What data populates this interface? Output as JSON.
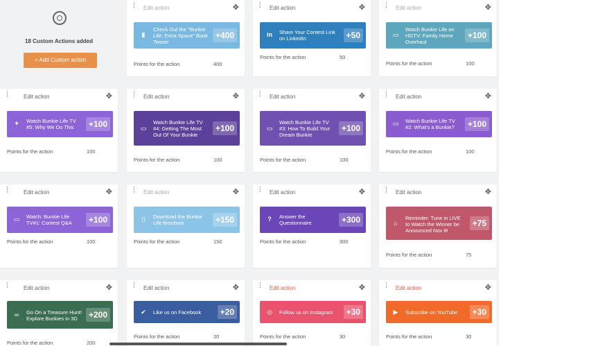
{
  "summary": {
    "count_label": "18 Custom Actions added",
    "add_button": "Add Custom action"
  },
  "edit_label": "Edit action",
  "points_label": "Points for the action",
  "cards": [
    {
      "label": "Check Out the \"Bunkie Life: Extra Space\" Book Teaser",
      "points": "+400",
      "value": "400",
      "icon": "book-icon"
    },
    {
      "label": "Share Your Contest Link on LinkedIn",
      "points": "+50",
      "value": "50",
      "icon": "linkedin-icon"
    },
    {
      "label": "Watch Bunkie Life on HGTV: Family Home Overhaul",
      "points": "+100",
      "value": "100",
      "icon": "monitor-icon"
    },
    {
      "label": "Watch Bunkie Life TV #5: Why We Do This",
      "points": "+100",
      "value": "100",
      "icon": "twitter-icon"
    },
    {
      "label": "Watch Bunkie Life TV #4: Getting The Most Out Of Your Bunkie",
      "points": "+100",
      "value": "100",
      "icon": "monitor-icon"
    },
    {
      "label": "Watch Bunkie Life TV #3: How To Build Your Dream Bunkie",
      "points": "+100",
      "value": "100",
      "icon": "monitor-icon"
    },
    {
      "label": "Watch Bunkie Life TV #2: What's a Bunkie?",
      "points": "+100",
      "value": "100",
      "icon": "monitor-icon"
    },
    {
      "label": "Watch: Bunkie Life TV#1: Contest Q&A",
      "points": "+100",
      "value": "100",
      "icon": "monitor-icon"
    },
    {
      "label": "Download the Bunkie Life Brochure",
      "points": "+150",
      "value": "150",
      "icon": "document-icon"
    },
    {
      "label": "Answer the Questionnaire",
      "points": "+300",
      "value": "300",
      "icon": "question-icon"
    },
    {
      "label": "Reminder: Tune in LIVE to Watch the Winner be Announced Nov 8!",
      "points": "+75",
      "value": "75",
      "icon": "bell-icon"
    },
    {
      "label": "Go On a Treasure Hunt! Explore Bunkies in 3D",
      "points": "+200",
      "value": "200",
      "icon": "binoculars-icon"
    },
    {
      "label": "Like us on Facebook",
      "points": "+20",
      "value": "20",
      "icon": "check-icon"
    },
    {
      "label": "Follow us on Instagram",
      "points": "+30",
      "value": "30",
      "icon": "instagram-icon"
    },
    {
      "label": "Subscribe on YouTube",
      "points": "+30",
      "value": "30",
      "icon": "youtube-icon"
    }
  ]
}
